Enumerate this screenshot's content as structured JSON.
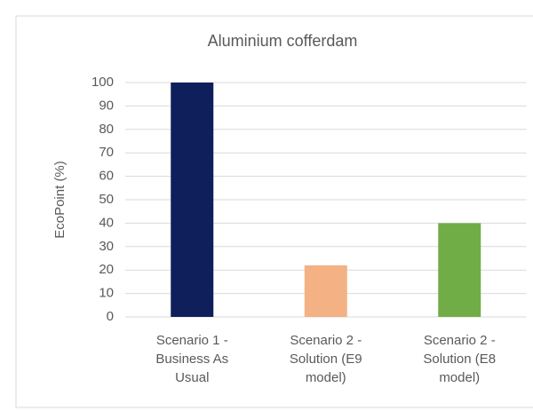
{
  "chart_data": {
    "type": "bar",
    "title": "Aluminium cofferdam",
    "y_label": "EcoPoint (%)",
    "categories": [
      "Scenario 1 - Business As Usual",
      "Scenario 2 - Solution (E9 model)",
      "Scenario 2 - Solution (E8 model)"
    ],
    "values": [
      100,
      22,
      40
    ],
    "colors": [
      "#0e1f5b",
      "#f4b183",
      "#70ad47"
    ],
    "ylim": [
      0,
      100
    ],
    "yticks": [
      0,
      10,
      20,
      30,
      40,
      50,
      60,
      70,
      80,
      90,
      100
    ],
    "grid": true
  }
}
